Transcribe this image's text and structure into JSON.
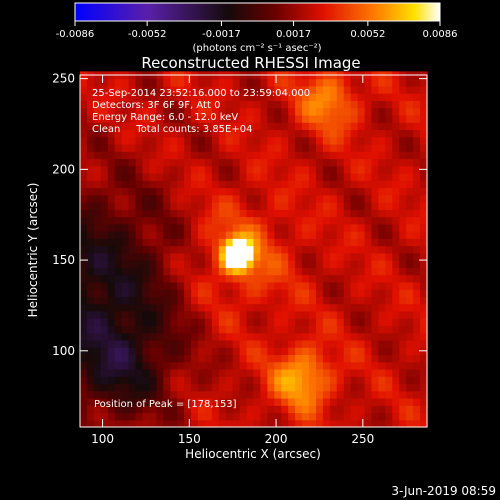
{
  "chart_data": {
    "type": "heatmap",
    "title": "Reconstructed RHESSI Image",
    "xlabel": "Heliocentric X (arcsec)",
    "ylabel": "Heliocentric Y (arcsec)",
    "xlim": [
      87,
      287
    ],
    "ylim": [
      58,
      252
    ],
    "x_ticks": [
      100,
      150,
      200,
      250
    ],
    "y_ticks": [
      100,
      150,
      200,
      250
    ],
    "colorbar": {
      "range": [
        -0.0086,
        0.0086
      ],
      "ticks": [
        "-0.0086",
        "-0.0052",
        "-0.0017",
        "0.0017",
        "0.0052",
        "0.0086"
      ],
      "unit_label": "(photons cm⁻² s⁻¹ asec⁻²)",
      "colormap": "blue-purple-black-red-orange-yellow-white"
    },
    "annotations": {
      "time_range": "25-Sep-2014 23:52:16.000 to 23:59:04.000",
      "detectors": "Detectors: 3F 6F 9F, Att 0",
      "energy_range": "Energy Range: 6.0 - 12.0 keV",
      "method_counts": "Clean     Total counts: 3.85E+04",
      "peak_position": "Position of Peak = [178,153]"
    },
    "peak": {
      "x": 178,
      "y": 153,
      "value": 0.0086
    },
    "secondary_sources": [
      {
        "x": 215,
        "y": 85,
        "value": 0.004
      },
      {
        "x": 230,
        "y": 238,
        "value": 0.003
      }
    ],
    "grid": false
  },
  "footer": {
    "date": "3-Jun-2019 08:59"
  }
}
